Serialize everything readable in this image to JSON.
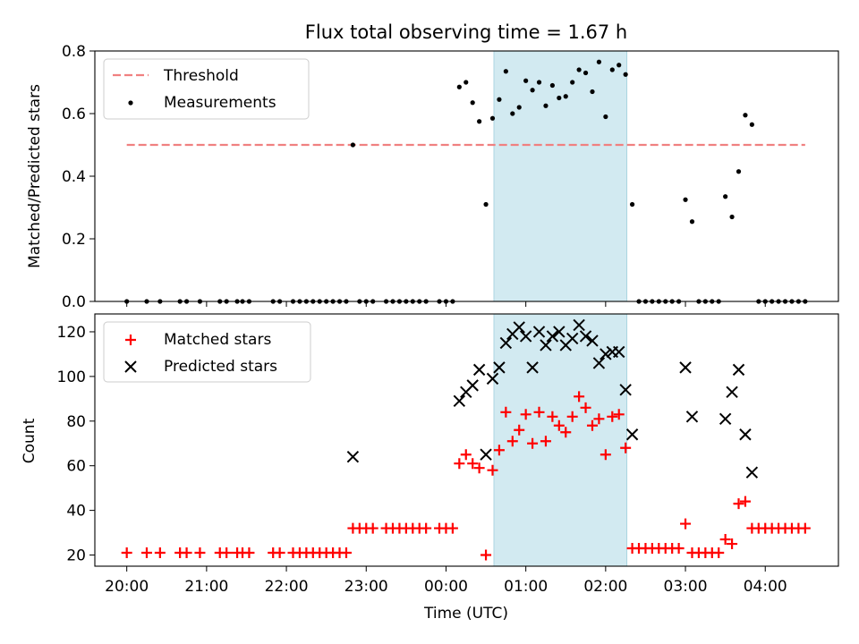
{
  "title": "Flux total observing time = 1.67 h",
  "colors": {
    "threshold": "#f08080",
    "measurement": "#000000",
    "matched": "#ff0000",
    "predicted": "#000000",
    "observing_window": "#add8e6"
  },
  "chart_data": [
    {
      "type": "scatter",
      "title": "Flux total observing time = 1.67 h",
      "xlabel": "",
      "ylabel": "Matched/Predicted stars",
      "ylim": [
        0,
        0.8
      ],
      "yticks": [
        "0.0",
        "0.2",
        "0.4",
        "0.6",
        "0.8"
      ],
      "xlim": [
        "19:36",
        "04:55"
      ],
      "grid": false,
      "legend_position": "top-left",
      "legend": [
        "Threshold",
        "Measurements"
      ],
      "observing_window": [
        "00:36",
        "02:16"
      ],
      "threshold": {
        "name": "Threshold",
        "style": "dashed",
        "x": [
          "20:00",
          "04:30"
        ],
        "y": 0.5
      },
      "measurements": {
        "name": "Measurements",
        "points": [
          [
            "20:00",
            0
          ],
          [
            "20:15",
            0
          ],
          [
            "20:25",
            0
          ],
          [
            "20:40",
            0
          ],
          [
            "20:45",
            0
          ],
          [
            "20:55",
            0
          ],
          [
            "21:10",
            0
          ],
          [
            "21:15",
            0
          ],
          [
            "21:23",
            0
          ],
          [
            "21:27",
            0
          ],
          [
            "21:32",
            0
          ],
          [
            "21:50",
            0
          ],
          [
            "21:55",
            0
          ],
          [
            "22:05",
            0
          ],
          [
            "22:10",
            0
          ],
          [
            "22:15",
            0
          ],
          [
            "22:20",
            0
          ],
          [
            "22:25",
            0
          ],
          [
            "22:30",
            0
          ],
          [
            "22:35",
            0
          ],
          [
            "22:40",
            0
          ],
          [
            "22:45",
            0
          ],
          [
            "22:50",
            0.5
          ],
          [
            "22:55",
            0
          ],
          [
            "23:00",
            0
          ],
          [
            "23:05",
            0
          ],
          [
            "23:15",
            0
          ],
          [
            "23:20",
            0
          ],
          [
            "23:25",
            0
          ],
          [
            "23:30",
            0
          ],
          [
            "23:35",
            0
          ],
          [
            "23:40",
            0
          ],
          [
            "23:45",
            0
          ],
          [
            "23:55",
            0
          ],
          [
            "24:00",
            0
          ],
          [
            "24:05",
            0
          ],
          [
            "24:10",
            0.685
          ],
          [
            "24:15",
            0.7
          ],
          [
            "24:20",
            0.635
          ],
          [
            "24:25",
            0.575
          ],
          [
            "24:30",
            0.31
          ],
          [
            "24:35",
            0.585
          ],
          [
            "24:40",
            0.645
          ],
          [
            "24:45",
            0.735
          ],
          [
            "24:50",
            0.6
          ],
          [
            "24:55",
            0.62
          ],
          [
            "25:00",
            0.705
          ],
          [
            "25:05",
            0.675
          ],
          [
            "25:10",
            0.7
          ],
          [
            "25:15",
            0.625
          ],
          [
            "25:20",
            0.69
          ],
          [
            "25:25",
            0.65
          ],
          [
            "25:30",
            0.655
          ],
          [
            "25:35",
            0.7
          ],
          [
            "25:40",
            0.74
          ],
          [
            "25:45",
            0.73
          ],
          [
            "25:50",
            0.67
          ],
          [
            "25:55",
            0.765
          ],
          [
            "26:00",
            0.59
          ],
          [
            "26:05",
            0.74
          ],
          [
            "26:10",
            0.755
          ],
          [
            "26:15",
            0.725
          ],
          [
            "26:20",
            0.31
          ],
          [
            "26:25",
            0
          ],
          [
            "26:30",
            0
          ],
          [
            "26:35",
            0
          ],
          [
            "26:40",
            0
          ],
          [
            "26:45",
            0
          ],
          [
            "26:50",
            0
          ],
          [
            "26:55",
            0
          ],
          [
            "27:00",
            0.325
          ],
          [
            "27:05",
            0.255
          ],
          [
            "27:10",
            0
          ],
          [
            "27:15",
            0
          ],
          [
            "27:20",
            0
          ],
          [
            "27:25",
            0
          ],
          [
            "27:30",
            0.335
          ],
          [
            "27:35",
            0.27
          ],
          [
            "27:40",
            0.415
          ],
          [
            "27:45",
            0.595
          ],
          [
            "27:50",
            0.565
          ],
          [
            "27:55",
            0
          ],
          [
            "28:00",
            0
          ],
          [
            "28:05",
            0
          ],
          [
            "28:10",
            0
          ],
          [
            "28:15",
            0
          ],
          [
            "28:20",
            0
          ],
          [
            "28:25",
            0
          ],
          [
            "28:30",
            0
          ]
        ]
      }
    },
    {
      "type": "scatter",
      "xlabel": "Time (UTC)",
      "ylabel": "Count",
      "ylim": [
        15,
        128
      ],
      "yticks": [
        "20",
        "40",
        "60",
        "80",
        "100",
        "120"
      ],
      "xticks": [
        "20:00",
        "21:00",
        "22:00",
        "23:00",
        "00:00",
        "01:00",
        "02:00",
        "03:00",
        "04:00"
      ],
      "xlim": [
        "19:36",
        "04:55"
      ],
      "grid": false,
      "legend_position": "top-left",
      "legend": [
        "Matched stars",
        "Predicted stars"
      ],
      "observing_window": [
        "00:36",
        "02:16"
      ],
      "series": [
        {
          "name": "Matched stars",
          "marker": "+",
          "points": [
            [
              "20:00",
              21
            ],
            [
              "20:15",
              21
            ],
            [
              "20:25",
              21
            ],
            [
              "20:40",
              21
            ],
            [
              "20:45",
              21
            ],
            [
              "20:55",
              21
            ],
            [
              "21:10",
              21
            ],
            [
              "21:15",
              21
            ],
            [
              "21:23",
              21
            ],
            [
              "21:27",
              21
            ],
            [
              "21:32",
              21
            ],
            [
              "21:50",
              21
            ],
            [
              "21:55",
              21
            ],
            [
              "22:05",
              21
            ],
            [
              "22:10",
              21
            ],
            [
              "22:15",
              21
            ],
            [
              "22:20",
              21
            ],
            [
              "22:25",
              21
            ],
            [
              "22:30",
              21
            ],
            [
              "22:35",
              21
            ],
            [
              "22:40",
              21
            ],
            [
              "22:45",
              21
            ],
            [
              "22:50",
              32
            ],
            [
              "22:55",
              32
            ],
            [
              "23:00",
              32
            ],
            [
              "23:05",
              32
            ],
            [
              "23:15",
              32
            ],
            [
              "23:20",
              32
            ],
            [
              "23:25",
              32
            ],
            [
              "23:30",
              32
            ],
            [
              "23:35",
              32
            ],
            [
              "23:40",
              32
            ],
            [
              "23:45",
              32
            ],
            [
              "23:55",
              32
            ],
            [
              "24:00",
              32
            ],
            [
              "24:05",
              32
            ],
            [
              "24:10",
              61
            ],
            [
              "24:15",
              65
            ],
            [
              "24:20",
              61
            ],
            [
              "24:25",
              59
            ],
            [
              "24:30",
              20
            ],
            [
              "24:35",
              58
            ],
            [
              "24:40",
              67
            ],
            [
              "24:45",
              84
            ],
            [
              "24:50",
              71
            ],
            [
              "24:55",
              76
            ],
            [
              "25:00",
              83
            ],
            [
              "25:05",
              70
            ],
            [
              "25:10",
              84
            ],
            [
              "25:15",
              71
            ],
            [
              "25:20",
              82
            ],
            [
              "25:25",
              78
            ],
            [
              "25:30",
              75
            ],
            [
              "25:35",
              82
            ],
            [
              "25:40",
              91
            ],
            [
              "25:45",
              86
            ],
            [
              "25:50",
              78
            ],
            [
              "25:55",
              81
            ],
            [
              "26:00",
              65
            ],
            [
              "26:05",
              82
            ],
            [
              "26:10",
              83
            ],
            [
              "26:15",
              68
            ],
            [
              "26:20",
              23
            ],
            [
              "26:25",
              23
            ],
            [
              "26:30",
              23
            ],
            [
              "26:35",
              23
            ],
            [
              "26:40",
              23
            ],
            [
              "26:45",
              23
            ],
            [
              "26:50",
              23
            ],
            [
              "26:55",
              23
            ],
            [
              "27:00",
              34
            ],
            [
              "27:05",
              21
            ],
            [
              "27:10",
              21
            ],
            [
              "27:15",
              21
            ],
            [
              "27:20",
              21
            ],
            [
              "27:25",
              21
            ],
            [
              "27:30",
              27
            ],
            [
              "27:35",
              25
            ],
            [
              "27:40",
              43
            ],
            [
              "27:45",
              44
            ],
            [
              "27:50",
              32
            ],
            [
              "27:55",
              32
            ],
            [
              "28:00",
              32
            ],
            [
              "28:05",
              32
            ],
            [
              "28:10",
              32
            ],
            [
              "28:15",
              32
            ],
            [
              "28:20",
              32
            ],
            [
              "28:25",
              32
            ],
            [
              "28:30",
              32
            ]
          ]
        },
        {
          "name": "Predicted stars",
          "marker": "x",
          "points": [
            [
              "22:50",
              64
            ],
            [
              "24:10",
              89
            ],
            [
              "24:15",
              93
            ],
            [
              "24:20",
              96
            ],
            [
              "24:25",
              103
            ],
            [
              "24:30",
              65
            ],
            [
              "24:35",
              99
            ],
            [
              "24:40",
              104
            ],
            [
              "24:45",
              115
            ],
            [
              "24:50",
              119
            ],
            [
              "24:55",
              122
            ],
            [
              "25:00",
              118
            ],
            [
              "25:05",
              104
            ],
            [
              "25:10",
              120
            ],
            [
              "25:15",
              114
            ],
            [
              "25:20",
              118
            ],
            [
              "25:25",
              120
            ],
            [
              "25:30",
              114
            ],
            [
              "25:35",
              117
            ],
            [
              "25:40",
              123
            ],
            [
              "25:45",
              118
            ],
            [
              "25:50",
              116
            ],
            [
              "25:55",
              106
            ],
            [
              "26:00",
              110
            ],
            [
              "26:05",
              111
            ],
            [
              "26:10",
              111
            ],
            [
              "26:15",
              94
            ],
            [
              "26:20",
              74
            ],
            [
              "27:00",
              104
            ],
            [
              "27:05",
              82
            ],
            [
              "27:30",
              81
            ],
            [
              "27:35",
              93
            ],
            [
              "27:40",
              103
            ],
            [
              "27:45",
              74
            ],
            [
              "27:50",
              57
            ]
          ]
        }
      ]
    }
  ]
}
